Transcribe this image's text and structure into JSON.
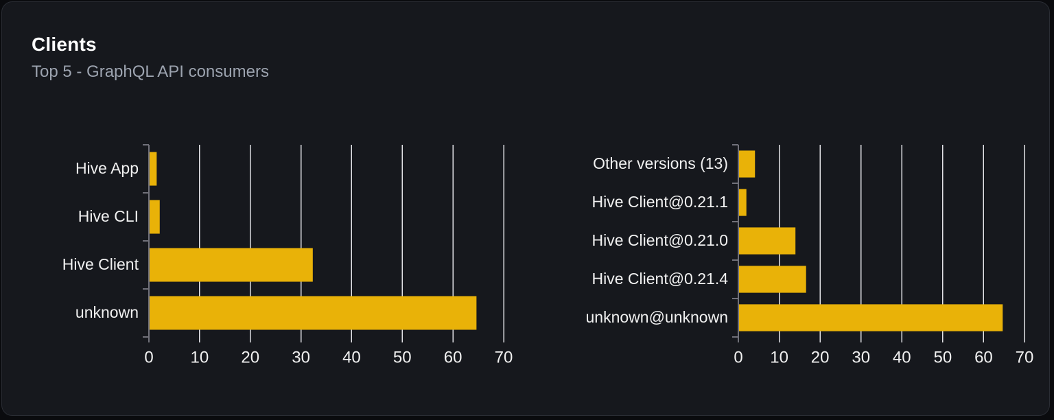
{
  "panel": {
    "title": "Clients",
    "subtitle": "Top 5 - GraphQL API consumers"
  },
  "colors": {
    "bar": "#e9b208",
    "card_bg": "#16181d",
    "page_bg": "#0a0b0e",
    "card_border": "#2a2d34",
    "grid": "#e2e2e6",
    "axis": "#71717a",
    "label": "#f1f1f1",
    "subtitle": "#9ca3af"
  },
  "chart_data": [
    {
      "type": "bar",
      "orientation": "horizontal",
      "name": "clients-by-name",
      "categories": [
        "Hive App",
        "Hive CLI",
        "Hive Client",
        "unknown"
      ],
      "values": [
        1.4,
        2,
        32.2,
        64.5
      ],
      "xlim": [
        0,
        70
      ],
      "xticks": [
        0,
        10,
        20,
        30,
        40,
        50,
        60,
        70
      ],
      "grid": true,
      "legend": false
    },
    {
      "type": "bar",
      "orientation": "horizontal",
      "name": "clients-by-version",
      "categories": [
        "Other versions (13)",
        "Hive Client@0.21.1",
        "Hive Client@0.21.0",
        "Hive Client@0.21.4",
        "unknown@unknown"
      ],
      "values": [
        3.9,
        1.8,
        13.8,
        16.4,
        64.5
      ],
      "xlim": [
        0,
        70
      ],
      "xticks": [
        0,
        10,
        20,
        30,
        40,
        50,
        60,
        70
      ],
      "grid": true,
      "legend": false
    }
  ]
}
